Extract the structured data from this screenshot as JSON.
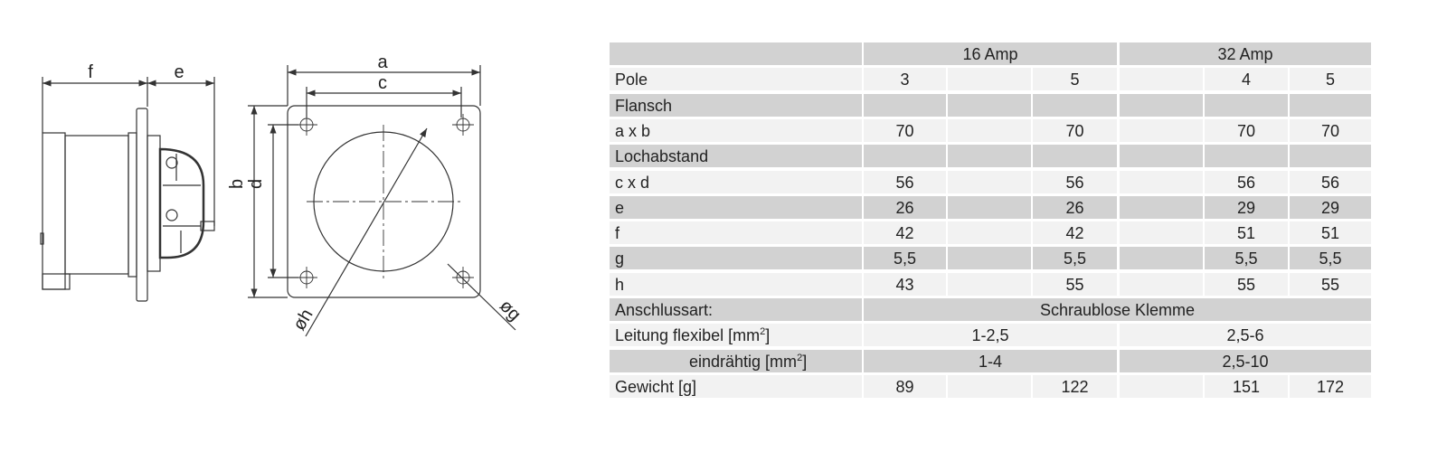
{
  "drawing": {
    "dimension_labels": {
      "a": "a",
      "b": "b",
      "c": "c",
      "d": "d",
      "e": "e",
      "f": "f",
      "g": "øg",
      "h": "øh"
    }
  },
  "table": {
    "groups": [
      "16 Amp",
      "32 Amp"
    ],
    "rows": [
      {
        "label": "Pole",
        "values": [
          "3",
          "",
          "5",
          "",
          "4",
          "5"
        ],
        "shade": "light"
      },
      {
        "label": "Flansch",
        "values": [
          "",
          "",
          "",
          "",
          "",
          ""
        ],
        "shade": "dark"
      },
      {
        "label": "a x b",
        "values": [
          "70",
          "",
          "70",
          "",
          "70",
          "70"
        ],
        "shade": "light"
      },
      {
        "label": "Lochabstand",
        "values": [
          "",
          "",
          "",
          "",
          "",
          ""
        ],
        "shade": "dark"
      },
      {
        "label": "c x d",
        "values": [
          "56",
          "",
          "56",
          "",
          "56",
          "56"
        ],
        "shade": "light"
      },
      {
        "label": "e",
        "values": [
          "26",
          "",
          "26",
          "",
          "29",
          "29"
        ],
        "shade": "dark"
      },
      {
        "label": "f",
        "values": [
          "42",
          "",
          "42",
          "",
          "51",
          "51"
        ],
        "shade": "light"
      },
      {
        "label": "g",
        "values": [
          "5,5",
          "",
          "5,5",
          "",
          "5,5",
          "5,5"
        ],
        "shade": "dark"
      },
      {
        "label": "h",
        "values": [
          "43",
          "",
          "55",
          "",
          "55",
          "55"
        ],
        "shade": "light"
      }
    ],
    "anschluss": {
      "label": "Anschlussart:",
      "value": "Schraublose Klemme"
    },
    "leitung": {
      "label": "Leitung flexibel [mm",
      "sup": "2",
      "suffix": "]",
      "v16": "1-2,5",
      "v32": "2,5-6"
    },
    "eindraehtig": {
      "label": "eindrähtig [mm",
      "sup": "2",
      "suffix": "]",
      "v16": "1-4",
      "v32": "2,5-10"
    },
    "gewicht": {
      "label": "Gewicht [g]",
      "values": [
        "89",
        "",
        "122",
        "",
        "151",
        "172"
      ]
    }
  }
}
